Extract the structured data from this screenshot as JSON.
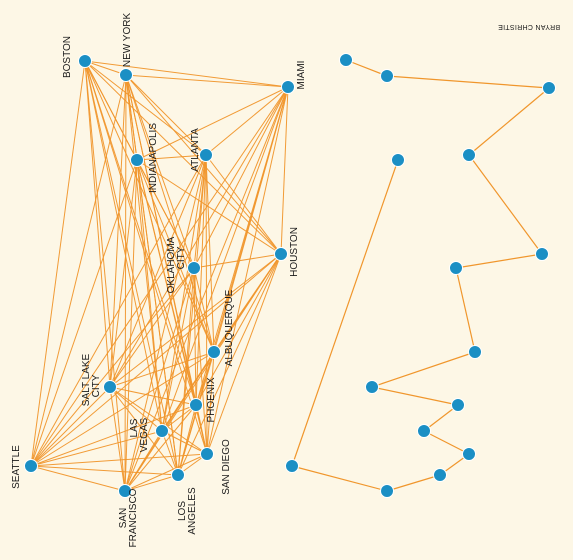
{
  "colors": {
    "background": "#fdf7e6",
    "edge": "#f0962c",
    "node": "#1b8fc4",
    "node_stroke": "#ffffff"
  },
  "credit": "BRYAN CHRISTIE",
  "chart_data": {
    "type": "network",
    "left_graph": {
      "kind": "complete graph",
      "cities": [
        {
          "id": "boston",
          "label": "BOSTON"
        },
        {
          "id": "newyork",
          "label": "NEW YORK"
        },
        {
          "id": "miami",
          "label": "MIAMI"
        },
        {
          "id": "indianapolis",
          "label": "INDIANAPOLIS"
        },
        {
          "id": "atlanta",
          "label": "ATLANTA"
        },
        {
          "id": "houston",
          "label": "HOUSTON"
        },
        {
          "id": "oklahoma",
          "label": "OKLAHOMA CITY"
        },
        {
          "id": "albuquerque",
          "label": "ALBUQUERQUE"
        },
        {
          "id": "saltlake",
          "label": "SALT LAKE CITY"
        },
        {
          "id": "phoenix",
          "label": "PHOENIX"
        },
        {
          "id": "lasvegas",
          "label": "LAS VEGAS"
        },
        {
          "id": "sandiego",
          "label": "SAN DIEGO"
        },
        {
          "id": "seattle",
          "label": "SEATTLE"
        },
        {
          "id": "losangeles",
          "label": "LOS ANGELES"
        },
        {
          "id": "sanfrancisco",
          "label": "SAN FRANCISCO"
        }
      ]
    },
    "right_graph": {
      "kind": "tour",
      "node_count": 15
    }
  }
}
